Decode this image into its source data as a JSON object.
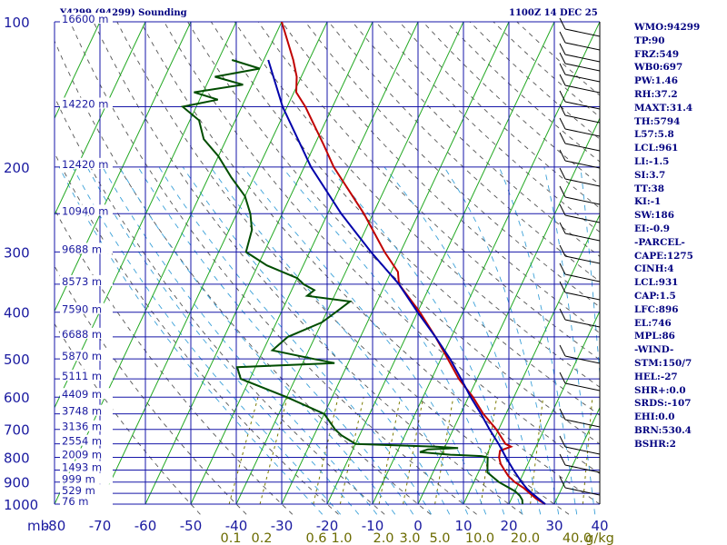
{
  "header": {
    "title": "Y4299 (94299) Sounding",
    "time": "1100Z 14 DEC 25"
  },
  "indices": [
    "WMO:94299",
    "TP:90",
    "FRZ:549",
    "WB0:697",
    "PW:1.46",
    "RH:37.2",
    "MAXT:31.4",
    "TH:5794",
    "L57:5.8",
    "LCL:961",
    "LI:-1.5",
    "SI:3.7",
    "TT:38",
    "KI:-1",
    "SW:186",
    "EI:-0.9",
    "-PARCEL-",
    "CAPE:1275",
    "CINH:4",
    "LCL:931",
    "CAP:1.5",
    "LFC:896",
    "EL:746",
    "MPL:86",
    "-WIND-",
    "STM:150/7",
    "HEL:-27",
    "SHR+:0.0",
    "SRDS:-107",
    "EHI:0.0",
    "BRN:530.4",
    "BSHR:2"
  ],
  "chart_data": {
    "type": "line",
    "title": "Y4299 (94299) Sounding",
    "skew_t": true,
    "xlim": [
      -80,
      40
    ],
    "ylim": [
      1000,
      100
    ],
    "y_scale": "log",
    "x_unit_label": "",
    "y_unit_label": "mb",
    "x_ticks": [
      -80,
      -70,
      -60,
      -50,
      -40,
      -30,
      -20,
      -10,
      0,
      10,
      20,
      30,
      40
    ],
    "y_ticks": [
      100,
      200,
      300,
      400,
      500,
      600,
      700,
      800,
      900,
      1000
    ],
    "pressure_lines": [
      100,
      150,
      200,
      250,
      300,
      350,
      400,
      450,
      500,
      550,
      600,
      650,
      700,
      750,
      800,
      850,
      900,
      950,
      1000
    ],
    "height_labels": [
      {
        "p": 100,
        "label": "16600 m"
      },
      {
        "p": 150,
        "label": "14220 m"
      },
      {
        "p": 200,
        "label": "12420 m"
      },
      {
        "p": 250,
        "label": "10940 m"
      },
      {
        "p": 300,
        "label": "9688 m"
      },
      {
        "p": 350,
        "label": "8573 m"
      },
      {
        "p": 400,
        "label": "7590 m"
      },
      {
        "p": 450,
        "label": "6688 m"
      },
      {
        "p": 500,
        "label": "5870 m"
      },
      {
        "p": 550,
        "label": "5111 m"
      },
      {
        "p": 600,
        "label": "4409 m"
      },
      {
        "p": 650,
        "label": "3748 m"
      },
      {
        "p": 700,
        "label": "3136 m"
      },
      {
        "p": 750,
        "label": "2554 m"
      },
      {
        "p": 800,
        "label": "2009 m"
      },
      {
        "p": 850,
        "label": "1493 m"
      },
      {
        "p": 900,
        "label": "999 m"
      },
      {
        "p": 950,
        "label": "529 m"
      },
      {
        "p": 1000,
        "label": "76 m"
      }
    ],
    "mixing_ratio_labels": [
      "0.1",
      "0.2",
      "0.6",
      "1.0",
      "2.0",
      "3.0",
      "5.0",
      "10.0",
      "20.0",
      "40.0",
      "g/kg"
    ],
    "mixing_ratio_values": [
      0.1,
      0.2,
      0.6,
      1.0,
      2.0,
      3.0,
      5.0,
      10.0,
      20.0,
      40.0
    ],
    "series": [
      {
        "name": "Temperature",
        "color": "#c00000",
        "points": [
          [
            1000,
            28.0
          ],
          [
            975,
            25.5
          ],
          [
            950,
            23.5
          ],
          [
            925,
            21.5
          ],
          [
            900,
            19.0
          ],
          [
            875,
            17.0
          ],
          [
            850,
            15.5
          ],
          [
            825,
            14.0
          ],
          [
            800,
            13.0
          ],
          [
            775,
            12.5
          ],
          [
            760,
            14.5
          ],
          [
            750,
            13.0
          ],
          [
            700,
            9.5
          ],
          [
            650,
            5.0
          ],
          [
            600,
            1.0
          ],
          [
            550,
            -4.0
          ],
          [
            500,
            -8.5
          ],
          [
            450,
            -13.5
          ],
          [
            400,
            -19.5
          ],
          [
            350,
            -27.0
          ],
          [
            330,
            -28.5
          ],
          [
            300,
            -33.5
          ],
          [
            250,
            -42.0
          ],
          [
            200,
            -53.5
          ],
          [
            180,
            -58.0
          ],
          [
            150,
            -66.0
          ],
          [
            140,
            -69.5
          ],
          [
            130,
            -71.0
          ],
          [
            120,
            -73.5
          ],
          [
            100,
            -80.0
          ]
        ]
      },
      {
        "name": "Dew Point",
        "color": "#004d00",
        "points": [
          [
            1000,
            23.0
          ],
          [
            980,
            22.5
          ],
          [
            960,
            21.5
          ],
          [
            940,
            20.0
          ],
          [
            900,
            15.5
          ],
          [
            860,
            12.0
          ],
          [
            820,
            11.0
          ],
          [
            800,
            10.5
          ],
          [
            795,
            9.0
          ],
          [
            790,
            2.0
          ],
          [
            780,
            -5.0
          ],
          [
            770,
            -3.5
          ],
          [
            765,
            3.0
          ],
          [
            760,
            -2.0
          ],
          [
            750,
            -20.0
          ],
          [
            720,
            -24.0
          ],
          [
            700,
            -26.0
          ],
          [
            650,
            -30.0
          ],
          [
            600,
            -40.0
          ],
          [
            550,
            -52.0
          ],
          [
            520,
            -54.0
          ],
          [
            510,
            -33.0
          ],
          [
            500,
            -38.0
          ],
          [
            480,
            -48.0
          ],
          [
            450,
            -46.0
          ],
          [
            420,
            -40.0
          ],
          [
            400,
            -38.0
          ],
          [
            380,
            -36.0
          ],
          [
            370,
            -46.0
          ],
          [
            360,
            -45.0
          ],
          [
            350,
            -48.0
          ],
          [
            340,
            -50.0
          ],
          [
            320,
            -58.0
          ],
          [
            300,
            -64.0
          ],
          [
            270,
            -65.0
          ],
          [
            250,
            -67.0
          ],
          [
            230,
            -70.0
          ],
          [
            210,
            -75.0
          ],
          [
            190,
            -80.0
          ],
          [
            175,
            -85.0
          ],
          [
            160,
            -88.0
          ],
          [
            150,
            -93.0
          ],
          [
            145,
            -86.0
          ],
          [
            140,
            -92.0
          ],
          [
            135,
            -82.0
          ],
          [
            130,
            -89.0
          ],
          [
            125,
            -80.0
          ],
          [
            120,
            -87.0
          ]
        ]
      },
      {
        "name": "Parcel",
        "color": "#0000aa",
        "points": [
          [
            1000,
            28.0
          ],
          [
            950,
            24.0
          ],
          [
            931,
            22.5
          ],
          [
            900,
            20.5
          ],
          [
            850,
            17.5
          ],
          [
            800,
            14.5
          ],
          [
            750,
            11.5
          ],
          [
            700,
            8.0
          ],
          [
            650,
            4.5
          ],
          [
            600,
            0.5
          ],
          [
            550,
            -3.5
          ],
          [
            500,
            -8.0
          ],
          [
            450,
            -13.5
          ],
          [
            400,
            -20.0
          ],
          [
            350,
            -27.0
          ],
          [
            300,
            -36.5
          ],
          [
            250,
            -47.0
          ],
          [
            200,
            -58.5
          ],
          [
            150,
            -71.0
          ],
          [
            120,
            -79.0
          ]
        ]
      }
    ],
    "grid": true
  }
}
